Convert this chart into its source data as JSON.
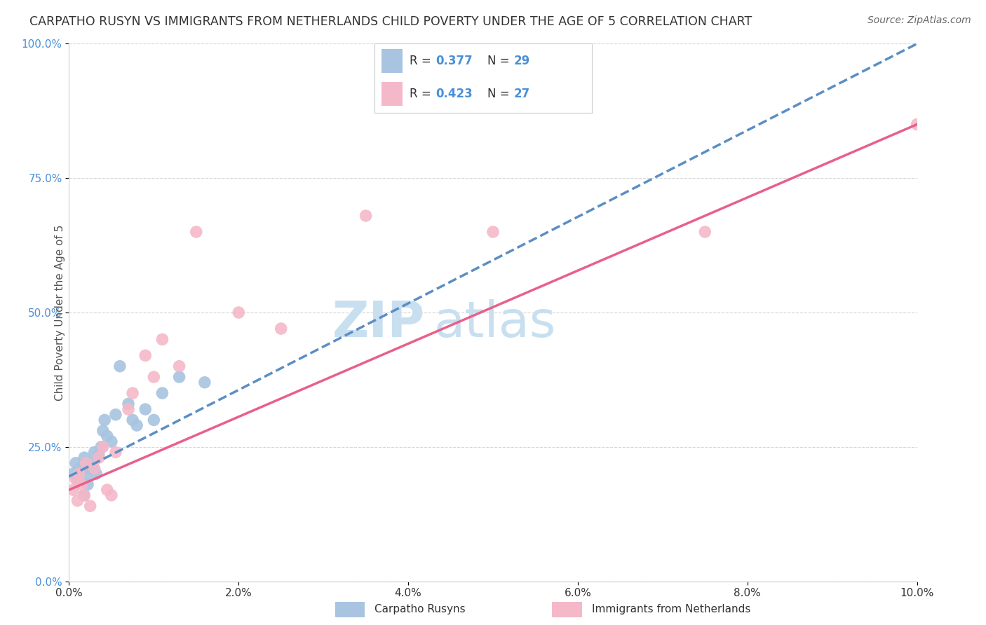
{
  "title": "CARPATHO RUSYN VS IMMIGRANTS FROM NETHERLANDS CHILD POVERTY UNDER THE AGE OF 5 CORRELATION CHART",
  "source": "Source: ZipAtlas.com",
  "ylabel": "Child Poverty Under the Age of 5",
  "watermark_zip": "ZIP",
  "watermark_atlas": "atlas",
  "xlim": [
    0.0,
    10.0
  ],
  "ylim": [
    0.0,
    100.0
  ],
  "xticks": [
    0.0,
    2.0,
    4.0,
    6.0,
    8.0,
    10.0
  ],
  "xtick_labels": [
    "0.0%",
    "2.0%",
    "4.0%",
    "6.0%",
    "8.0%",
    "10.0%"
  ],
  "yticks": [
    0.0,
    25.0,
    50.0,
    75.0,
    100.0
  ],
  "ytick_labels": [
    "0.0%",
    "25.0%",
    "50.0%",
    "75.0%",
    "100.0%"
  ],
  "series1_label": "Carpatho Rusyns",
  "series1_R": "0.377",
  "series1_N": "29",
  "series1_color": "#a8c4e0",
  "series1_line_color": "#5b8ec4",
  "series2_label": "Immigrants from Netherlands",
  "series2_R": "0.423",
  "series2_N": "27",
  "series2_color": "#f4b8c8",
  "series2_line_color": "#e8608a",
  "series1_x": [
    0.05,
    0.08,
    0.1,
    0.12,
    0.15,
    0.18,
    0.2,
    0.22,
    0.25,
    0.28,
    0.3,
    0.32,
    0.35,
    0.38,
    0.4,
    0.42,
    0.45,
    0.5,
    0.55,
    0.6,
    0.7,
    0.75,
    0.8,
    0.9,
    1.0,
    1.1,
    1.3,
    1.6,
    0.18
  ],
  "series1_y": [
    20.0,
    22.0,
    19.0,
    21.0,
    20.5,
    23.0,
    19.5,
    18.0,
    22.0,
    21.0,
    24.0,
    20.0,
    23.5,
    25.0,
    28.0,
    30.0,
    27.0,
    26.0,
    31.0,
    40.0,
    33.0,
    30.0,
    29.0,
    32.0,
    30.0,
    35.0,
    38.0,
    37.0,
    16.0
  ],
  "series2_x": [
    0.05,
    0.08,
    0.1,
    0.12,
    0.15,
    0.18,
    0.2,
    0.25,
    0.3,
    0.35,
    0.4,
    0.45,
    0.5,
    0.55,
    0.7,
    0.75,
    0.9,
    1.0,
    1.1,
    1.3,
    1.5,
    2.0,
    2.5,
    3.5,
    5.0,
    7.5,
    10.0
  ],
  "series2_y": [
    17.0,
    19.0,
    15.0,
    20.0,
    18.0,
    16.0,
    22.0,
    14.0,
    21.0,
    23.0,
    25.0,
    17.0,
    16.0,
    24.0,
    32.0,
    35.0,
    42.0,
    38.0,
    45.0,
    40.0,
    65.0,
    50.0,
    47.0,
    68.0,
    65.0,
    65.0,
    85.0
  ],
  "line1_x0": 0.0,
  "line1_y0": 19.5,
  "line1_x1": 10.0,
  "line1_y1": 100.0,
  "line2_x0": 0.0,
  "line2_y0": 17.0,
  "line2_x1": 10.0,
  "line2_y1": 85.0,
  "background_color": "#ffffff",
  "grid_color": "#cccccc",
  "title_fontsize": 12.5,
  "axis_label_fontsize": 11,
  "tick_fontsize": 11,
  "legend_fontsize": 13,
  "watermark_fontsize_zip": 52,
  "watermark_fontsize_atlas": 52,
  "watermark_color": "#c8dff0",
  "source_fontsize": 10
}
